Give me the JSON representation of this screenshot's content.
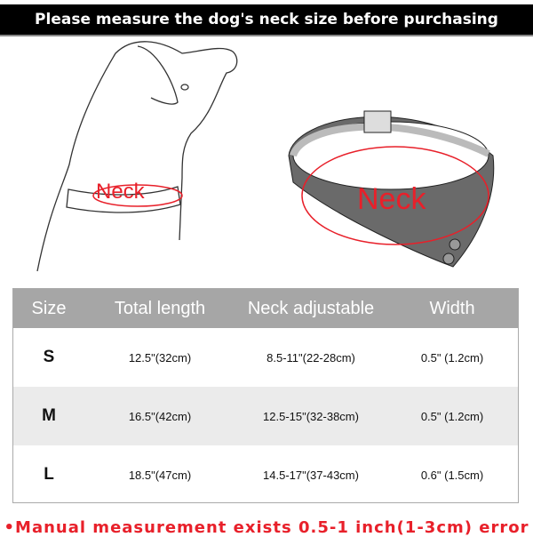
{
  "banner": {
    "title": "Please measure the dog's neck size before purchasing"
  },
  "illustrations": {
    "dog_label": "Neck",
    "collar_label": "Neck"
  },
  "table": {
    "headers": [
      "Size",
      "Total length",
      "Neck adjustable",
      "Width"
    ],
    "rows": [
      [
        "S",
        "12.5\"(32cm)",
        "8.5-11\"(22-28cm)",
        "0.5\" (1.2cm)"
      ],
      [
        "M",
        "16.5\"(42cm)",
        "12.5-15\"(32-38cm)",
        "0.5\" (1.2cm)"
      ],
      [
        "L",
        "18.5\"(47cm)",
        "14.5-17\"(37-43cm)",
        "0.6\" (1.5cm)"
      ]
    ]
  },
  "footer": {
    "note": "•Manual measurement exists 0.5-1 inch(1-3cm) error"
  },
  "colors": {
    "accent_red": "#e8202a",
    "header_gray": "#a6a6a6",
    "alt_row": "#ebebeb"
  }
}
